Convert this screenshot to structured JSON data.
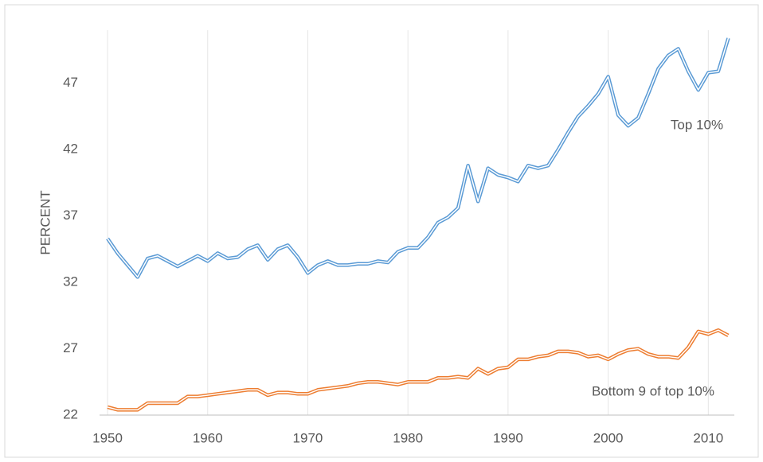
{
  "chart_data": {
    "type": "line",
    "y_label": "PERCENT",
    "x": [
      1950,
      1951,
      1952,
      1953,
      1954,
      1955,
      1956,
      1957,
      1958,
      1959,
      1960,
      1961,
      1962,
      1963,
      1964,
      1965,
      1966,
      1967,
      1968,
      1969,
      1970,
      1971,
      1972,
      1973,
      1974,
      1975,
      1976,
      1977,
      1978,
      1979,
      1980,
      1981,
      1982,
      1983,
      1984,
      1985,
      1986,
      1987,
      1988,
      1989,
      1990,
      1991,
      1992,
      1993,
      1994,
      1995,
      1996,
      1997,
      1998,
      1999,
      2000,
      2001,
      2002,
      2003,
      2004,
      2005,
      2006,
      2007,
      2008,
      2009,
      2010,
      2011,
      2012
    ],
    "series": [
      {
        "name": "Top 10%",
        "color": "#5b9bd5",
        "values": [
          35.3,
          34.2,
          33.3,
          32.4,
          33.8,
          34.0,
          33.6,
          33.2,
          33.6,
          34.0,
          33.6,
          34.2,
          33.8,
          33.9,
          34.5,
          34.8,
          33.7,
          34.5,
          34.8,
          33.9,
          32.7,
          33.3,
          33.6,
          33.3,
          33.3,
          33.4,
          33.4,
          33.6,
          33.5,
          34.3,
          34.6,
          34.6,
          35.4,
          36.5,
          36.9,
          37.6,
          40.8,
          38.1,
          40.6,
          40.1,
          39.9,
          39.6,
          40.8,
          40.6,
          40.8,
          42.0,
          43.3,
          44.5,
          45.3,
          46.2,
          47.5,
          44.6,
          43.8,
          44.4,
          46.2,
          48.1,
          49.1,
          49.6,
          47.9,
          46.5,
          47.8,
          47.9,
          50.4
        ]
      },
      {
        "name": "Bottom 9 of top 10%",
        "color": "#ed7d31",
        "values": [
          22.6,
          22.4,
          22.4,
          22.4,
          22.9,
          22.9,
          22.9,
          22.9,
          23.4,
          23.4,
          23.5,
          23.6,
          23.7,
          23.8,
          23.9,
          23.9,
          23.5,
          23.7,
          23.7,
          23.6,
          23.6,
          23.9,
          24.0,
          24.1,
          24.2,
          24.4,
          24.5,
          24.5,
          24.4,
          24.3,
          24.5,
          24.5,
          24.5,
          24.8,
          24.8,
          24.9,
          24.8,
          25.5,
          25.1,
          25.5,
          25.6,
          26.2,
          26.2,
          26.4,
          26.5,
          26.8,
          26.8,
          26.7,
          26.4,
          26.5,
          26.2,
          26.6,
          26.9,
          27.0,
          26.6,
          26.4,
          26.4,
          26.3,
          27.1,
          28.3,
          28.1,
          28.4,
          28.0
        ]
      }
    ],
    "xlim": [
      1949.2,
      2012.6
    ],
    "xticks": [
      1950,
      1960,
      1970,
      1980,
      1990,
      2000,
      2010
    ],
    "ylim": [
      22,
      51
    ],
    "yticks": [
      22,
      27,
      32,
      37,
      42,
      47
    ],
    "grid": true
  }
}
